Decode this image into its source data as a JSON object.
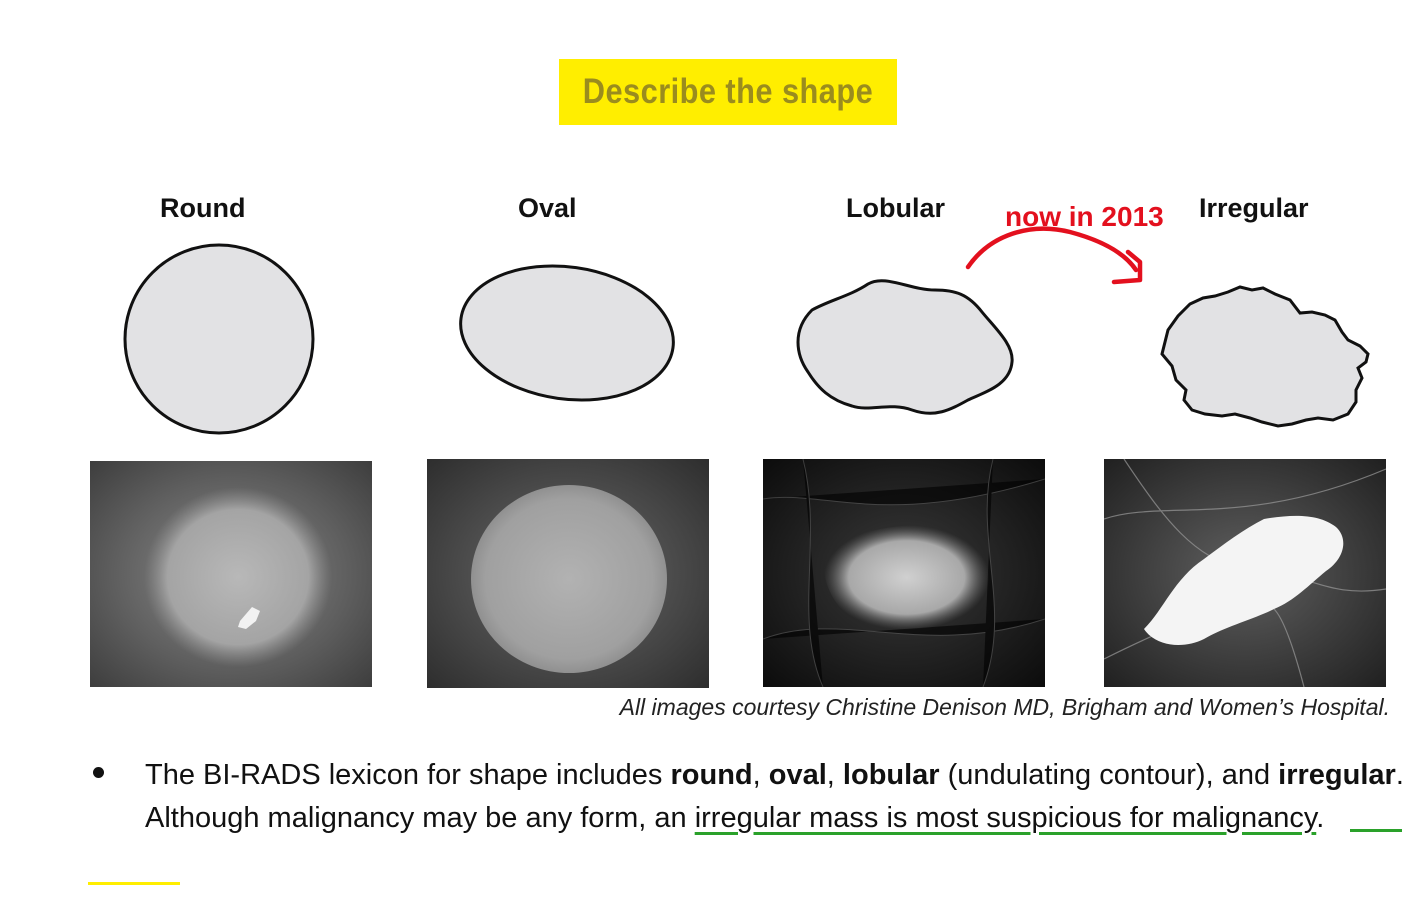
{
  "slide": {
    "title": "Describe the shape",
    "colors": {
      "title_highlight": "#ffee00",
      "title_text": "#9a8c1e",
      "annotation": "#e3101e",
      "underline": "#2aa12a",
      "shape_fill": "#e2e2e4"
    },
    "shapes": [
      {
        "label": "Round",
        "icon": "round-shape-outline",
        "xray": "round-mass-mammogram"
      },
      {
        "label": "Oval",
        "icon": "oval-shape-outline",
        "xray": "oval-mass-mammogram"
      },
      {
        "label": "Lobular",
        "icon": "lobular-shape-outline",
        "xray": "lobular-mass-mammogram"
      },
      {
        "label": "Irregular",
        "icon": "irregular-shape-outline",
        "xray": "irregular-mass-mammogram"
      }
    ],
    "annotation": {
      "text": "now in 2013",
      "icon": "curved-arrow-icon"
    },
    "credit": "All images courtesy Christine Denison MD, Brigham and Women’s Hospital.",
    "bullet": {
      "intro": "The BI-RADS lexicon for shape includes ",
      "term1": "round",
      "sep1": ", ",
      "term2": "oval",
      "sep2": ", ",
      "term3": "lobular",
      "paren": " (undulating contour), and ",
      "term4": "irregular",
      "middle": ". Although malignancy may be any form, an ",
      "emphasis": "irregular mass is most suspicious for malignancy",
      "end": "."
    }
  }
}
